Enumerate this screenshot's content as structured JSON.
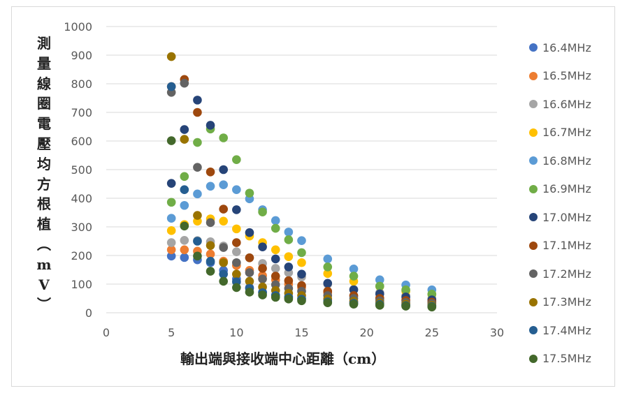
{
  "chart_data": {
    "type": "scatter",
    "title": "",
    "xlabel": "輸出端與接收端中心距離（cm）",
    "ylabel": "測量線圈電壓均方根植（mV）",
    "xlim": [
      0,
      30
    ],
    "ylim": [
      0,
      1000
    ],
    "x_ticks": [
      "0",
      "5",
      "10",
      "15",
      "20",
      "25",
      "30"
    ],
    "y_ticks": [
      "0",
      "100",
      "200",
      "300",
      "400",
      "500",
      "600",
      "700",
      "800",
      "900",
      "1000"
    ],
    "grid": "horizontal",
    "legend": "right",
    "series": [
      {
        "name": "16.4MHz",
        "color": "#4472c4",
        "points": [
          [
            5,
            198
          ],
          [
            6,
            193
          ],
          [
            7,
            185
          ],
          [
            8,
            175
          ],
          [
            9,
            148
          ],
          [
            10,
            118
          ],
          [
            11,
            88
          ],
          [
            12,
            72
          ],
          [
            13,
            62
          ],
          [
            14,
            56
          ],
          [
            15,
            50
          ],
          [
            17,
            42
          ],
          [
            19,
            36
          ],
          [
            21,
            32
          ],
          [
            23,
            28
          ],
          [
            25,
            25
          ]
        ]
      },
      {
        "name": "16.5MHz",
        "color": "#ed7d31",
        "points": [
          [
            5,
            220
          ],
          [
            6,
            220
          ],
          [
            7,
            215
          ],
          [
            8,
            205
          ],
          [
            9,
            180
          ],
          [
            10,
            165
          ],
          [
            11,
            148
          ],
          [
            12,
            130
          ],
          [
            13,
            115
          ],
          [
            14,
            100
          ],
          [
            15,
            88
          ],
          [
            17,
            70
          ],
          [
            19,
            58
          ],
          [
            21,
            52
          ],
          [
            23,
            45
          ],
          [
            25,
            40
          ]
        ]
      },
      {
        "name": "16.6MHz",
        "color": "#a5a5a5",
        "points": [
          [
            5,
            245
          ],
          [
            6,
            253
          ],
          [
            7,
            252
          ],
          [
            8,
            248
          ],
          [
            9,
            233
          ],
          [
            10,
            213
          ],
          [
            11,
            192
          ],
          [
            12,
            172
          ],
          [
            13,
            155
          ],
          [
            14,
            140
          ],
          [
            15,
            125
          ],
          [
            17,
            100
          ],
          [
            19,
            82
          ],
          [
            21,
            70
          ],
          [
            23,
            60
          ],
          [
            25,
            50
          ]
        ]
      },
      {
        "name": "16.7MHz",
        "color": "#ffc000",
        "points": [
          [
            5,
            287
          ],
          [
            6,
            308
          ],
          [
            7,
            320
          ],
          [
            8,
            328
          ],
          [
            9,
            320
          ],
          [
            10,
            293
          ],
          [
            11,
            268
          ],
          [
            12,
            245
          ],
          [
            13,
            220
          ],
          [
            14,
            196
          ],
          [
            15,
            175
          ],
          [
            17,
            137
          ],
          [
            19,
            110
          ],
          [
            21,
            92
          ],
          [
            23,
            75
          ],
          [
            25,
            64
          ]
        ]
      },
      {
        "name": "16.8MHz",
        "color": "#5b9bd5",
        "points": [
          [
            5,
            330
          ],
          [
            6,
            375
          ],
          [
            7,
            415
          ],
          [
            8,
            442
          ],
          [
            9,
            447
          ],
          [
            10,
            430
          ],
          [
            11,
            398
          ],
          [
            12,
            360
          ],
          [
            13,
            322
          ],
          [
            14,
            282
          ],
          [
            15,
            252
          ],
          [
            17,
            188
          ],
          [
            19,
            153
          ],
          [
            21,
            115
          ],
          [
            23,
            97
          ],
          [
            25,
            80
          ]
        ]
      },
      {
        "name": "16.9MHz",
        "color": "#70ad47",
        "points": [
          [
            5,
            386
          ],
          [
            6,
            476
          ],
          [
            7,
            595
          ],
          [
            8,
            642
          ],
          [
            9,
            611
          ],
          [
            10,
            535
          ],
          [
            11,
            418
          ],
          [
            12,
            352
          ],
          [
            13,
            295
          ],
          [
            14,
            255
          ],
          [
            15,
            210
          ],
          [
            17,
            160
          ],
          [
            19,
            128
          ],
          [
            21,
            93
          ],
          [
            23,
            80
          ],
          [
            25,
            65
          ]
        ]
      },
      {
        "name": "17.0MHz",
        "color": "#264478",
        "points": [
          [
            5,
            452
          ],
          [
            6,
            640
          ],
          [
            7,
            743
          ],
          [
            8,
            655
          ],
          [
            9,
            500
          ],
          [
            10,
            360
          ],
          [
            11,
            280
          ],
          [
            12,
            230
          ],
          [
            13,
            188
          ],
          [
            14,
            160
          ],
          [
            15,
            135
          ],
          [
            17,
            103
          ],
          [
            19,
            80
          ],
          [
            21,
            66
          ],
          [
            23,
            55
          ],
          [
            25,
            45
          ]
        ]
      },
      {
        "name": "17.1MHz",
        "color": "#9e480e",
        "points": [
          [
            5,
            790
          ],
          [
            6,
            815
          ],
          [
            7,
            700
          ],
          [
            8,
            492
          ],
          [
            9,
            362
          ],
          [
            10,
            245
          ],
          [
            11,
            192
          ],
          [
            12,
            155
          ],
          [
            13,
            128
          ],
          [
            14,
            112
          ],
          [
            15,
            95
          ],
          [
            17,
            75
          ],
          [
            19,
            60
          ],
          [
            21,
            50
          ],
          [
            23,
            43
          ],
          [
            25,
            37
          ]
        ]
      },
      {
        "name": "17.2MHz",
        "color": "#636363",
        "points": [
          [
            5,
            770
          ],
          [
            6,
            802
          ],
          [
            7,
            508
          ],
          [
            8,
            315
          ],
          [
            9,
            228
          ],
          [
            10,
            175
          ],
          [
            11,
            140
          ],
          [
            12,
            118
          ],
          [
            13,
            98
          ],
          [
            14,
            85
          ],
          [
            15,
            75
          ],
          [
            17,
            60
          ],
          [
            19,
            50
          ],
          [
            21,
            42
          ],
          [
            23,
            36
          ],
          [
            25,
            32
          ]
        ]
      },
      {
        "name": "17.3MHz",
        "color": "#997300",
        "points": [
          [
            5,
            895
          ],
          [
            6,
            606
          ],
          [
            7,
            340
          ],
          [
            8,
            235
          ],
          [
            9,
            175
          ],
          [
            10,
            135
          ],
          [
            11,
            110
          ],
          [
            12,
            90
          ],
          [
            13,
            78
          ],
          [
            14,
            68
          ],
          [
            15,
            60
          ],
          [
            17,
            48
          ],
          [
            19,
            40
          ],
          [
            21,
            34
          ],
          [
            23,
            30
          ],
          [
            25,
            26
          ]
        ]
      },
      {
        "name": "17.4MHz",
        "color": "#255e91",
        "points": [
          [
            5,
            790
          ],
          [
            6,
            430
          ],
          [
            7,
            250
          ],
          [
            8,
            180
          ],
          [
            9,
            135
          ],
          [
            10,
            108
          ],
          [
            11,
            85
          ],
          [
            12,
            70
          ],
          [
            13,
            60
          ],
          [
            14,
            53
          ],
          [
            15,
            47
          ],
          [
            17,
            38
          ],
          [
            19,
            33
          ],
          [
            21,
            29
          ],
          [
            23,
            25
          ],
          [
            25,
            22
          ]
        ]
      },
      {
        "name": "17.5MHz",
        "color": "#43682b",
        "points": [
          [
            5,
            601
          ],
          [
            6,
            303
          ],
          [
            7,
            198
          ],
          [
            8,
            145
          ],
          [
            9,
            110
          ],
          [
            10,
            88
          ],
          [
            11,
            72
          ],
          [
            12,
            62
          ],
          [
            13,
            54
          ],
          [
            14,
            48
          ],
          [
            15,
            42
          ],
          [
            17,
            35
          ],
          [
            19,
            30
          ],
          [
            21,
            26
          ],
          [
            23,
            23
          ],
          [
            25,
            20
          ]
        ]
      }
    ]
  }
}
